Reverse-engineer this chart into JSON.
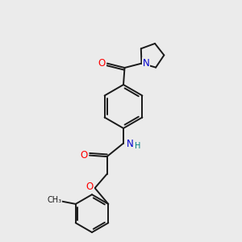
{
  "bg_color": "#ebebeb",
  "bond_color": "#1a1a1a",
  "bond_width": 1.4,
  "atom_colors": {
    "O": "#ff0000",
    "N_blue": "#0000cc",
    "N_teal": "#008080",
    "C": "#1a1a1a"
  },
  "xlim": [
    0,
    10
  ],
  "ylim": [
    0,
    10
  ],
  "figsize": [
    3.0,
    3.0
  ],
  "dpi": 100,
  "font_size_atom": 8.5,
  "font_size_H": 7.0,
  "font_size_me": 7.0
}
